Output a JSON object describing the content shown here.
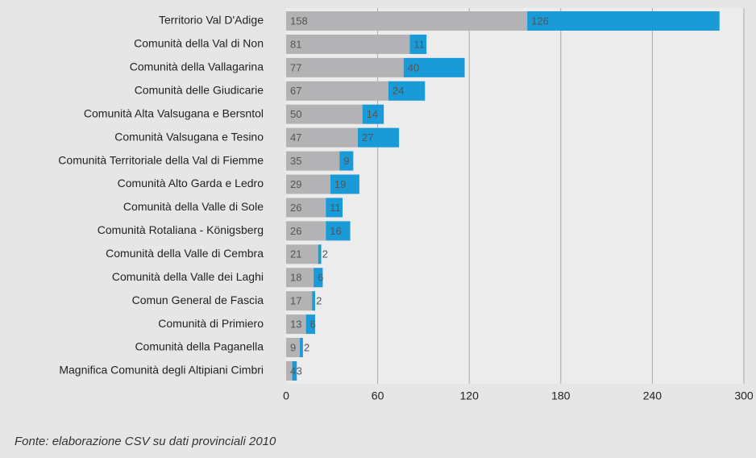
{
  "chart_data": {
    "type": "bar",
    "orientation": "horizontal",
    "stacked": true,
    "categories": [
      "Territorio Val D'Adige",
      "Comunità della Val di Non",
      "Comunità della Vallagarina",
      "Comunità delle Giudicarie",
      "Comunità Alta Valsugana e Bersntol",
      "Comunità Valsugana e Tesino",
      "Comunità Territoriale della Val di Fiemme",
      "Comunità Alto Garda e Ledro",
      "Comunità della Valle di Sole",
      "Comunità Rotaliana - Königsberg",
      "Comunità della Valle di Cembra",
      "Comunità della Valle dei Laghi",
      "Comun General de Fascia",
      "Comunità di Primiero",
      "Comunità della Paganella",
      "Magnifica Comunità degli Altipiani Cimbri"
    ],
    "series": [
      {
        "color": "#b3b3b5",
        "values": [
          158,
          81,
          77,
          67,
          50,
          47,
          35,
          29,
          26,
          26,
          21,
          18,
          17,
          13,
          9,
          4
        ]
      },
      {
        "color": "#1a9ad6",
        "values": [
          126,
          11,
          40,
          24,
          14,
          27,
          9,
          19,
          11,
          16,
          2,
          6,
          2,
          6,
          2,
          3
        ]
      }
    ],
    "xlim": [
      0,
      300
    ],
    "xticks": [
      0,
      60,
      120,
      180,
      240,
      300
    ],
    "grid": true,
    "source": "Fonte: elaborazione CSV su dati provinciali 2010"
  }
}
